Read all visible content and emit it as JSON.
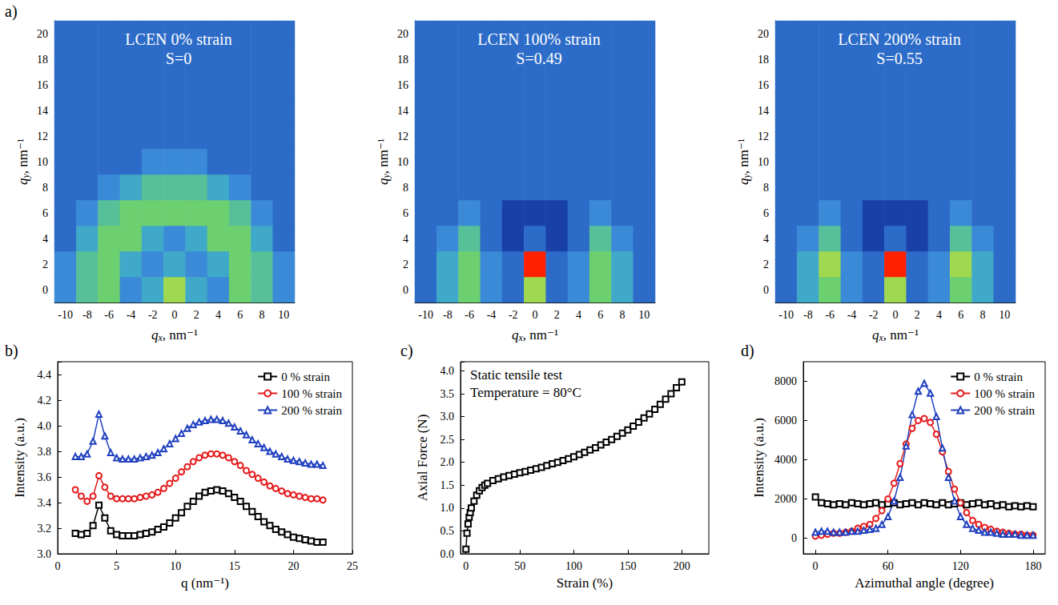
{
  "chart_data": [
    {
      "type": "heatmap",
      "panel": "a)",
      "title": "LCEN 0% strain",
      "subtitle": "S=0",
      "x_label": "qx, nm⁻¹",
      "y_label": "qy, nm⁻¹",
      "x": [
        -10,
        -8,
        -6,
        -4,
        -2,
        0,
        2,
        4,
        6,
        8,
        10
      ],
      "y": [
        0,
        2,
        4,
        6,
        8,
        10,
        12,
        14,
        16,
        18,
        20
      ],
      "color_range": [
        0,
        10
      ],
      "cells": [
        [
          3,
          5,
          6,
          3,
          4,
          7,
          4,
          3,
          6,
          5,
          3
        ],
        [
          3,
          5,
          6,
          4,
          3,
          4,
          3,
          4,
          6,
          5,
          3
        ],
        [
          2,
          4,
          6,
          6,
          4,
          3,
          4,
          6,
          6,
          4,
          2
        ],
        [
          2,
          3,
          5,
          6,
          6,
          6,
          6,
          6,
          5,
          3,
          2
        ],
        [
          2,
          2,
          3,
          4,
          5,
          5,
          5,
          4,
          3,
          2,
          2
        ],
        [
          2,
          2,
          2,
          2,
          3,
          3,
          3,
          2,
          2,
          2,
          2
        ],
        [
          2,
          2,
          2,
          2,
          2,
          2,
          2,
          2,
          2,
          2,
          2
        ],
        [
          2,
          2,
          2,
          2,
          2,
          2,
          2,
          2,
          2,
          2,
          2
        ],
        [
          2,
          2,
          2,
          2,
          2,
          2,
          2,
          2,
          2,
          2,
          2
        ],
        [
          2,
          2,
          2,
          2,
          2,
          2,
          2,
          2,
          2,
          2,
          2
        ],
        [
          2,
          2,
          2,
          2,
          2,
          2,
          2,
          2,
          2,
          2,
          2
        ]
      ]
    },
    {
      "type": "heatmap",
      "title": "LCEN 100% strain",
      "subtitle": "S=0.49",
      "x_label": "qx, nm⁻¹",
      "y_label": "qy, nm⁻¹",
      "x": [
        -10,
        -8,
        -6,
        -4,
        -2,
        0,
        2,
        4,
        6,
        8,
        10
      ],
      "y": [
        0,
        2,
        4,
        6,
        8,
        10,
        12,
        14,
        16,
        18,
        20
      ],
      "color_range": [
        0,
        10
      ],
      "cells": [
        [
          2,
          4,
          6,
          3,
          2,
          7,
          2,
          3,
          6,
          4,
          2
        ],
        [
          2,
          4,
          6,
          3,
          2,
          9,
          2,
          3,
          6,
          4,
          2
        ],
        [
          2,
          3,
          5,
          2,
          1,
          2,
          1,
          2,
          5,
          3,
          2
        ],
        [
          2,
          2,
          3,
          2,
          1,
          1,
          1,
          2,
          3,
          2,
          2
        ],
        [
          2,
          2,
          2,
          2,
          2,
          2,
          2,
          2,
          2,
          2,
          2
        ],
        [
          2,
          2,
          2,
          2,
          2,
          2,
          2,
          2,
          2,
          2,
          2
        ],
        [
          2,
          2,
          2,
          2,
          2,
          2,
          2,
          2,
          2,
          2,
          2
        ],
        [
          2,
          2,
          2,
          2,
          2,
          2,
          2,
          2,
          2,
          2,
          2
        ],
        [
          2,
          2,
          2,
          2,
          2,
          2,
          2,
          2,
          2,
          2,
          2
        ],
        [
          2,
          2,
          2,
          2,
          2,
          2,
          2,
          2,
          2,
          2,
          2
        ],
        [
          2,
          2,
          2,
          2,
          2,
          2,
          2,
          2,
          2,
          2,
          2
        ]
      ]
    },
    {
      "type": "heatmap",
      "title": "LCEN 200% strain",
      "subtitle": "S=0.55",
      "x_label": "qx, nm⁻¹",
      "y_label": "qy, nm⁻¹",
      "x": [
        -10,
        -8,
        -6,
        -4,
        -2,
        0,
        2,
        4,
        6,
        8,
        10
      ],
      "y": [
        0,
        2,
        4,
        6,
        8,
        10,
        12,
        14,
        16,
        18,
        20
      ],
      "color_range": [
        0,
        10
      ],
      "cells": [
        [
          2,
          4,
          6,
          3,
          2,
          7,
          2,
          3,
          6,
          4,
          2
        ],
        [
          2,
          4,
          7,
          3,
          2,
          9,
          2,
          3,
          7,
          4,
          2
        ],
        [
          2,
          3,
          5,
          2,
          1,
          2,
          1,
          2,
          5,
          3,
          2
        ],
        [
          2,
          2,
          3,
          2,
          1,
          1,
          1,
          2,
          3,
          2,
          2
        ],
        [
          2,
          2,
          2,
          2,
          2,
          2,
          2,
          2,
          2,
          2,
          2
        ],
        [
          2,
          2,
          2,
          2,
          2,
          2,
          2,
          2,
          2,
          2,
          2
        ],
        [
          2,
          2,
          2,
          2,
          2,
          2,
          2,
          2,
          2,
          2,
          2
        ],
        [
          2,
          2,
          2,
          2,
          2,
          2,
          2,
          2,
          2,
          2,
          2
        ],
        [
          2,
          2,
          2,
          2,
          2,
          2,
          2,
          2,
          2,
          2,
          2
        ],
        [
          2,
          2,
          2,
          2,
          2,
          2,
          2,
          2,
          2,
          2,
          2
        ],
        [
          2,
          2,
          2,
          2,
          2,
          2,
          2,
          2,
          2,
          2,
          2
        ]
      ]
    },
    {
      "type": "line",
      "panel": "b)",
      "x_label": "q (nm⁻¹)",
      "y_label": "Intensity (a.u.)",
      "xlim": [
        0,
        25
      ],
      "xticks": [
        0,
        5,
        10,
        15,
        20,
        25
      ],
      "ylim": [
        3.0,
        4.5
      ],
      "yticks": [
        {
          "value": 3.0,
          "label": "3.0"
        },
        3.2,
        3.4,
        3.6,
        3.8,
        {
          "value": 4.0,
          "label": "4.0"
        },
        4.2,
        4.4
      ],
      "grid": false,
      "legend": "upper right",
      "x": [
        1.5,
        2,
        2.5,
        3,
        3.5,
        4,
        4.5,
        5,
        5.5,
        6,
        6.5,
        7,
        7.5,
        8,
        8.5,
        9,
        9.5,
        10,
        10.5,
        11,
        11.5,
        12,
        12.5,
        13,
        13.5,
        14,
        14.5,
        15,
        15.5,
        16,
        16.5,
        17,
        17.5,
        18,
        18.5,
        19,
        19.5,
        20,
        20.5,
        21,
        21.5,
        22,
        22.5
      ],
      "series": [
        {
          "name": "0 % strain",
          "color": "#000000",
          "marker": "square",
          "values": [
            3.16,
            3.15,
            3.16,
            3.22,
            3.38,
            3.28,
            3.18,
            3.15,
            3.14,
            3.14,
            3.14,
            3.15,
            3.16,
            3.17,
            3.19,
            3.21,
            3.24,
            3.28,
            3.32,
            3.37,
            3.41,
            3.45,
            3.48,
            3.49,
            3.5,
            3.49,
            3.47,
            3.44,
            3.41,
            3.37,
            3.33,
            3.29,
            3.25,
            3.22,
            3.19,
            3.17,
            3.15,
            3.13,
            3.12,
            3.11,
            3.1,
            3.09,
            3.09
          ]
        },
        {
          "name": "100 % strain",
          "color": "#e41a1c",
          "marker": "circle",
          "values": [
            3.5,
            3.45,
            3.41,
            3.45,
            3.61,
            3.52,
            3.45,
            3.43,
            3.43,
            3.43,
            3.43,
            3.44,
            3.45,
            3.46,
            3.48,
            3.51,
            3.55,
            3.59,
            3.64,
            3.68,
            3.72,
            3.75,
            3.77,
            3.78,
            3.78,
            3.77,
            3.75,
            3.72,
            3.69,
            3.65,
            3.62,
            3.59,
            3.56,
            3.53,
            3.51,
            3.49,
            3.47,
            3.46,
            3.45,
            3.44,
            3.43,
            3.43,
            3.42
          ]
        },
        {
          "name": "200 % strain",
          "color": "#1f3fbf",
          "marker": "triangle",
          "values": [
            3.76,
            3.76,
            3.78,
            3.88,
            4.09,
            3.92,
            3.79,
            3.75,
            3.74,
            3.74,
            3.74,
            3.75,
            3.76,
            3.77,
            3.79,
            3.82,
            3.86,
            3.9,
            3.94,
            3.98,
            4.01,
            4.03,
            4.04,
            4.05,
            4.05,
            4.04,
            4.02,
            3.99,
            3.96,
            3.93,
            3.89,
            3.86,
            3.83,
            3.8,
            3.78,
            3.76,
            3.74,
            3.73,
            3.72,
            3.71,
            3.7,
            3.7,
            3.69
          ]
        }
      ]
    },
    {
      "type": "line",
      "panel": "c)",
      "x_label": "Strain (%)",
      "y_label": "Axial Force (N)",
      "annotations": [
        "Static tensile test",
        "Temperature = 80°C"
      ],
      "xlim": [
        -5,
        225
      ],
      "xticks": [
        0,
        50,
        100,
        150,
        200
      ],
      "ylim": [
        0,
        4.2
      ],
      "yticks": [
        {
          "value": 0,
          "label": "0.0"
        },
        0.5,
        {
          "value": 1,
          "label": "1.0"
        },
        1.5,
        {
          "value": 2,
          "label": "2.0"
        },
        2.5,
        {
          "value": 3,
          "label": "3.0"
        },
        3.5,
        {
          "value": 4,
          "label": "4.0"
        }
      ],
      "grid": false,
      "x": [
        0,
        1,
        2,
        3,
        4,
        5,
        7.5,
        10,
        12.5,
        15,
        17.5,
        20,
        25,
        30,
        35,
        40,
        45,
        50,
        55,
        60,
        65,
        70,
        75,
        80,
        85,
        90,
        95,
        100,
        105,
        110,
        115,
        120,
        125,
        130,
        135,
        140,
        145,
        150,
        155,
        160,
        165,
        170,
        175,
        180,
        185,
        190,
        195,
        200
      ],
      "series": [
        {
          "color": "#000000",
          "marker": "square",
          "values": [
            0.1,
            0.45,
            0.65,
            0.8,
            0.9,
            1.0,
            1.15,
            1.28,
            1.38,
            1.45,
            1.5,
            1.54,
            1.6,
            1.64,
            1.68,
            1.71,
            1.74,
            1.77,
            1.8,
            1.83,
            1.86,
            1.89,
            1.93,
            1.97,
            2.0,
            2.04,
            2.08,
            2.12,
            2.17,
            2.22,
            2.27,
            2.32,
            2.38,
            2.44,
            2.5,
            2.57,
            2.64,
            2.71,
            2.79,
            2.88,
            2.97,
            3.06,
            3.16,
            3.27,
            3.38,
            3.5,
            3.63,
            3.76
          ]
        }
      ]
    },
    {
      "type": "line",
      "panel": "d)",
      "x_label": "Azimuthal angle (degree)",
      "y_label": "Intensity (a.u.)",
      "xlim": [
        -10,
        190
      ],
      "xticks": [
        0,
        60,
        120,
        180
      ],
      "ylim": [
        -800,
        9000
      ],
      "yticks": [
        0,
        2000,
        4000,
        6000,
        8000
      ],
      "grid": false,
      "legend": "upper right",
      "x": [
        0,
        5,
        10,
        15,
        20,
        25,
        30,
        35,
        40,
        45,
        50,
        55,
        60,
        65,
        70,
        75,
        80,
        85,
        90,
        95,
        100,
        105,
        110,
        115,
        120,
        125,
        130,
        135,
        140,
        145,
        150,
        155,
        160,
        165,
        170,
        175,
        180
      ],
      "series": [
        {
          "name": "0 % strain",
          "color": "#000000",
          "marker": "square",
          "values": [
            2100,
            1800,
            1750,
            1700,
            1750,
            1700,
            1800,
            1750,
            1700,
            1750,
            1800,
            1700,
            1750,
            1800,
            1700,
            1750,
            1800,
            1700,
            1800,
            1750,
            1700,
            1800,
            1700,
            1750,
            1800,
            1700,
            1750,
            1800,
            1700,
            1750,
            1650,
            1700,
            1600,
            1650,
            1600,
            1650,
            1600
          ]
        },
        {
          "name": "100 % strain",
          "color": "#e41a1c",
          "marker": "circle",
          "values": [
            100,
            150,
            200,
            250,
            250,
            300,
            350,
            500,
            600,
            700,
            1000,
            1400,
            2000,
            2800,
            3800,
            4800,
            5600,
            6000,
            6100,
            5900,
            5300,
            4400,
            3400,
            2500,
            1800,
            1300,
            900,
            700,
            550,
            450,
            350,
            300,
            250,
            200,
            200,
            150,
            150
          ]
        },
        {
          "name": "200 % strain",
          "color": "#1f3fbf",
          "marker": "triangle",
          "values": [
            300,
            350,
            350,
            300,
            300,
            300,
            350,
            350,
            400,
            450,
            500,
            700,
            1100,
            1900,
            3100,
            4700,
            6300,
            7500,
            7900,
            7400,
            6200,
            4600,
            3100,
            1900,
            1100,
            700,
            500,
            400,
            300,
            300,
            250,
            200,
            200,
            200,
            150,
            150,
            150
          ]
        }
      ]
    }
  ]
}
